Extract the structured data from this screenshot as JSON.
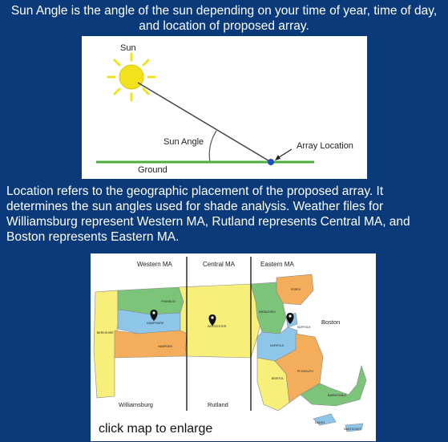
{
  "intro_text": "Sun Angle is the angle of the sun depending on your time of year, time of day, and location of proposed array.",
  "diagram": {
    "sun_label": "Sun",
    "angle_label": "Sun Angle",
    "array_label": "Array Location",
    "ground_label": "Ground",
    "colors": {
      "sun": "#f2e21e",
      "ground": "#4caf3a",
      "array_dot": "#1f4fbf"
    }
  },
  "location_text": "Location refers to the geographic placement of the proposed array. It determines the sun angles used for shade analysis. Weather files for Williamsburg represent Western MA, Rutland represents Central MA, and Boston represents Eastern MA.",
  "map": {
    "region_headers": [
      "Western MA",
      "Central MA",
      "Eastern MA"
    ],
    "city_labels": {
      "williamsburg": "Williamsburg",
      "rutland": "Rutland",
      "boston": "Boston"
    },
    "county_labels": [
      "FRANKLIN",
      "HAMPSHIRE",
      "BERKSHIRE",
      "HAMPDEN",
      "WORCESTER",
      "ESSEX",
      "MIDDLESEX",
      "SUFFOLK",
      "NORFOLK",
      "BRISTOL",
      "PLYMOUTH",
      "BARNSTABLE",
      "DUKES",
      "NANTUCKET"
    ],
    "caption": "click map to enlarge"
  }
}
